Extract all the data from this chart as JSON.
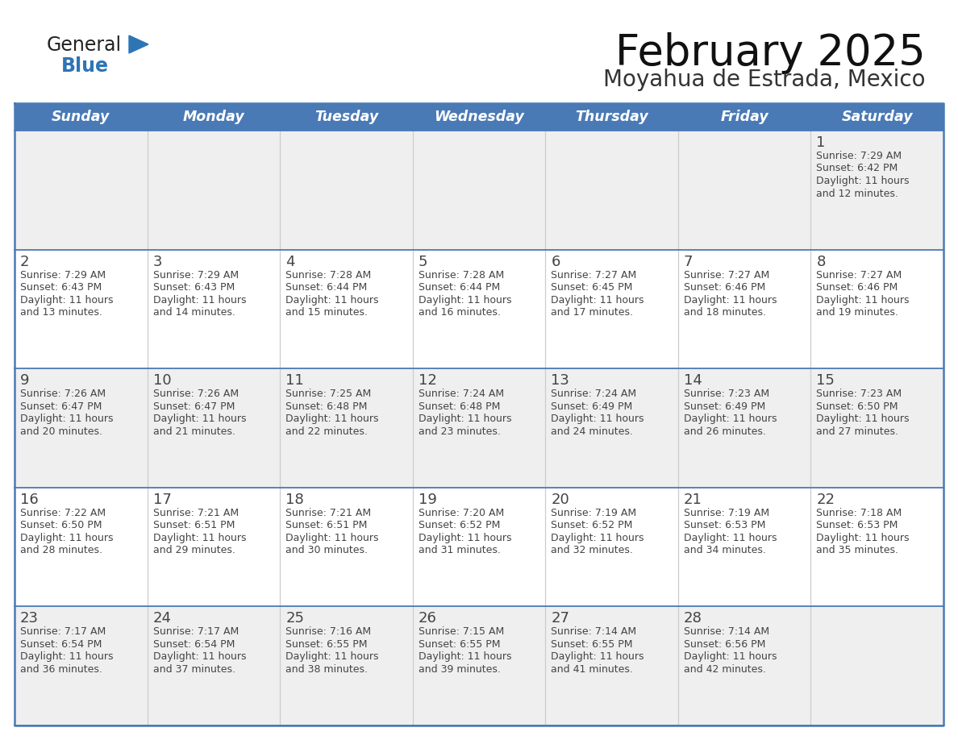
{
  "title": "February 2025",
  "subtitle": "Moyahua de Estrada, Mexico",
  "days_of_week": [
    "Sunday",
    "Monday",
    "Tuesday",
    "Wednesday",
    "Thursday",
    "Friday",
    "Saturday"
  ],
  "header_bg": "#4a7ab5",
  "header_text_color": "#ffffff",
  "cell_bg_light": "#efefef",
  "cell_bg_white": "#ffffff",
  "line_color": "#4a7ab5",
  "text_color": "#444444",
  "title_color": "#111111",
  "subtitle_color": "#333333",
  "logo_general_color": "#222222",
  "logo_blue_color": "#2e75b6",
  "calendar_data": [
    [
      null,
      null,
      null,
      null,
      null,
      null,
      {
        "day": 1,
        "sunrise": "7:29 AM",
        "sunset": "6:42 PM",
        "daylight": "11 hours and 12 minutes."
      }
    ],
    [
      {
        "day": 2,
        "sunrise": "7:29 AM",
        "sunset": "6:43 PM",
        "daylight": "11 hours and 13 minutes."
      },
      {
        "day": 3,
        "sunrise": "7:29 AM",
        "sunset": "6:43 PM",
        "daylight": "11 hours and 14 minutes."
      },
      {
        "day": 4,
        "sunrise": "7:28 AM",
        "sunset": "6:44 PM",
        "daylight": "11 hours and 15 minutes."
      },
      {
        "day": 5,
        "sunrise": "7:28 AM",
        "sunset": "6:44 PM",
        "daylight": "11 hours and 16 minutes."
      },
      {
        "day": 6,
        "sunrise": "7:27 AM",
        "sunset": "6:45 PM",
        "daylight": "11 hours and 17 minutes."
      },
      {
        "day": 7,
        "sunrise": "7:27 AM",
        "sunset": "6:46 PM",
        "daylight": "11 hours and 18 minutes."
      },
      {
        "day": 8,
        "sunrise": "7:27 AM",
        "sunset": "6:46 PM",
        "daylight": "11 hours and 19 minutes."
      }
    ],
    [
      {
        "day": 9,
        "sunrise": "7:26 AM",
        "sunset": "6:47 PM",
        "daylight": "11 hours and 20 minutes."
      },
      {
        "day": 10,
        "sunrise": "7:26 AM",
        "sunset": "6:47 PM",
        "daylight": "11 hours and 21 minutes."
      },
      {
        "day": 11,
        "sunrise": "7:25 AM",
        "sunset": "6:48 PM",
        "daylight": "11 hours and 22 minutes."
      },
      {
        "day": 12,
        "sunrise": "7:24 AM",
        "sunset": "6:48 PM",
        "daylight": "11 hours and 23 minutes."
      },
      {
        "day": 13,
        "sunrise": "7:24 AM",
        "sunset": "6:49 PM",
        "daylight": "11 hours and 24 minutes."
      },
      {
        "day": 14,
        "sunrise": "7:23 AM",
        "sunset": "6:49 PM",
        "daylight": "11 hours and 26 minutes."
      },
      {
        "day": 15,
        "sunrise": "7:23 AM",
        "sunset": "6:50 PM",
        "daylight": "11 hours and 27 minutes."
      }
    ],
    [
      {
        "day": 16,
        "sunrise": "7:22 AM",
        "sunset": "6:50 PM",
        "daylight": "11 hours and 28 minutes."
      },
      {
        "day": 17,
        "sunrise": "7:21 AM",
        "sunset": "6:51 PM",
        "daylight": "11 hours and 29 minutes."
      },
      {
        "day": 18,
        "sunrise": "7:21 AM",
        "sunset": "6:51 PM",
        "daylight": "11 hours and 30 minutes."
      },
      {
        "day": 19,
        "sunrise": "7:20 AM",
        "sunset": "6:52 PM",
        "daylight": "11 hours and 31 minutes."
      },
      {
        "day": 20,
        "sunrise": "7:19 AM",
        "sunset": "6:52 PM",
        "daylight": "11 hours and 32 minutes."
      },
      {
        "day": 21,
        "sunrise": "7:19 AM",
        "sunset": "6:53 PM",
        "daylight": "11 hours and 34 minutes."
      },
      {
        "day": 22,
        "sunrise": "7:18 AM",
        "sunset": "6:53 PM",
        "daylight": "11 hours and 35 minutes."
      }
    ],
    [
      {
        "day": 23,
        "sunrise": "7:17 AM",
        "sunset": "6:54 PM",
        "daylight": "11 hours and 36 minutes."
      },
      {
        "day": 24,
        "sunrise": "7:17 AM",
        "sunset": "6:54 PM",
        "daylight": "11 hours and 37 minutes."
      },
      {
        "day": 25,
        "sunrise": "7:16 AM",
        "sunset": "6:55 PM",
        "daylight": "11 hours and 38 minutes."
      },
      {
        "day": 26,
        "sunrise": "7:15 AM",
        "sunset": "6:55 PM",
        "daylight": "11 hours and 39 minutes."
      },
      {
        "day": 27,
        "sunrise": "7:14 AM",
        "sunset": "6:55 PM",
        "daylight": "11 hours and 41 minutes."
      },
      {
        "day": 28,
        "sunrise": "7:14 AM",
        "sunset": "6:56 PM",
        "daylight": "11 hours and 42 minutes."
      },
      null
    ]
  ],
  "row_bg_colors": [
    "#efefef",
    "#ffffff",
    "#efefef",
    "#ffffff",
    "#efefef"
  ]
}
